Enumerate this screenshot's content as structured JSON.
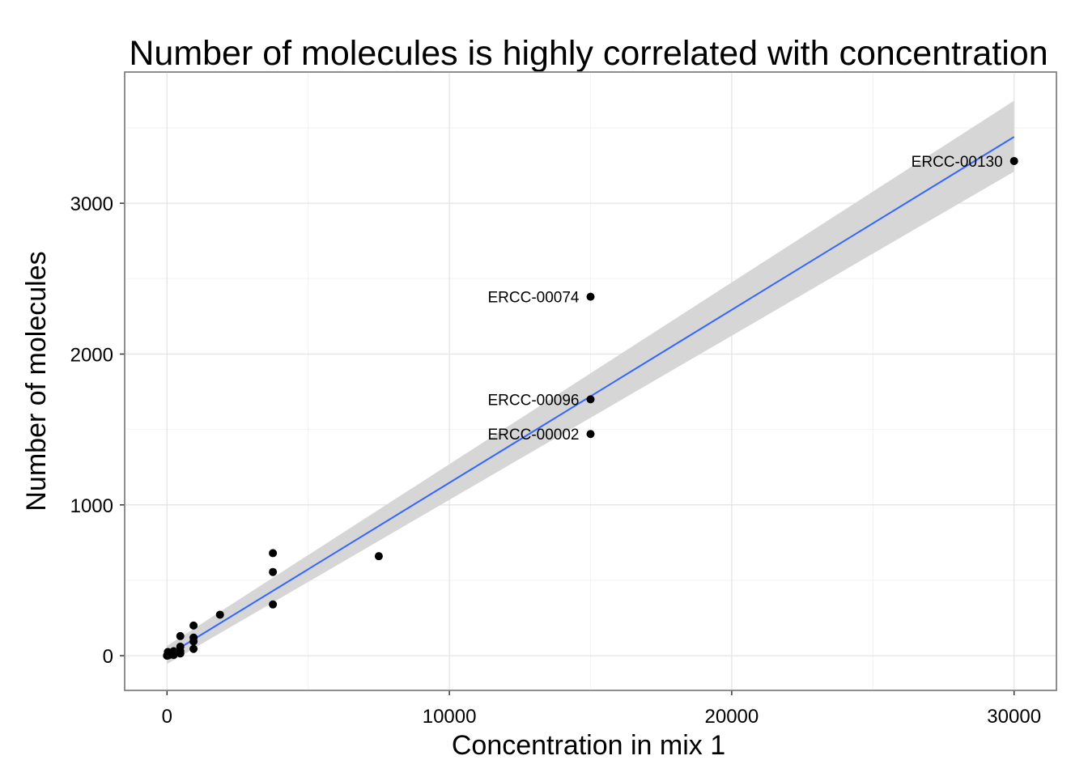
{
  "chart_data": {
    "type": "scatter",
    "title": "Number of molecules is highly correlated with concentration",
    "xlabel": "Concentration in mix 1",
    "ylabel": "Number of molecules",
    "xlim": [
      -1500,
      31500
    ],
    "ylim": [
      -230,
      3870
    ],
    "x_ticks": [
      0,
      10000,
      20000,
      30000
    ],
    "x_tick_labels": [
      "0",
      "10000",
      "20000",
      "30000"
    ],
    "y_ticks": [
      0,
      1000,
      2000,
      3000
    ],
    "y_tick_labels": [
      "0",
      "1000",
      "2000",
      "3000"
    ],
    "grid": true,
    "point_color": "#000000",
    "points": [
      {
        "x": 30000,
        "y": 3280,
        "label": "ERCC-00130"
      },
      {
        "x": 15000,
        "y": 2380,
        "label": "ERCC-00074"
      },
      {
        "x": 15000,
        "y": 1700,
        "label": "ERCC-00096"
      },
      {
        "x": 15000,
        "y": 1470,
        "label": "ERCC-00002"
      },
      {
        "x": 7500,
        "y": 660
      },
      {
        "x": 3750,
        "y": 680
      },
      {
        "x": 3750,
        "y": 555
      },
      {
        "x": 3750,
        "y": 340
      },
      {
        "x": 1875,
        "y": 272
      },
      {
        "x": 940,
        "y": 200
      },
      {
        "x": 940,
        "y": 120
      },
      {
        "x": 940,
        "y": 95
      },
      {
        "x": 940,
        "y": 45
      },
      {
        "x": 470,
        "y": 130
      },
      {
        "x": 470,
        "y": 60
      },
      {
        "x": 470,
        "y": 30
      },
      {
        "x": 470,
        "y": 15
      },
      {
        "x": 235,
        "y": 30
      },
      {
        "x": 235,
        "y": 15
      },
      {
        "x": 235,
        "y": 5
      },
      {
        "x": 117,
        "y": 20
      },
      {
        "x": 117,
        "y": 8
      },
      {
        "x": 58,
        "y": 10
      },
      {
        "x": 58,
        "y": 3
      },
      {
        "x": 29,
        "y": 25
      },
      {
        "x": 29,
        "y": 5
      },
      {
        "x": 15,
        "y": 2
      },
      {
        "x": 7,
        "y": 1
      },
      {
        "x": 4,
        "y": 0
      },
      {
        "x": 2,
        "y": 1
      },
      {
        "x": 1,
        "y": 0
      }
    ],
    "fit": {
      "method": "linear",
      "x_range": [
        0,
        30000
      ],
      "y_at_min": 0,
      "y_at_max": 3440,
      "ci_at_min": [
        -55,
        65
      ],
      "ci_at_max": [
        3210,
        3680
      ],
      "line_color": "#3366FF",
      "band_color": "#D6D6D6"
    }
  }
}
